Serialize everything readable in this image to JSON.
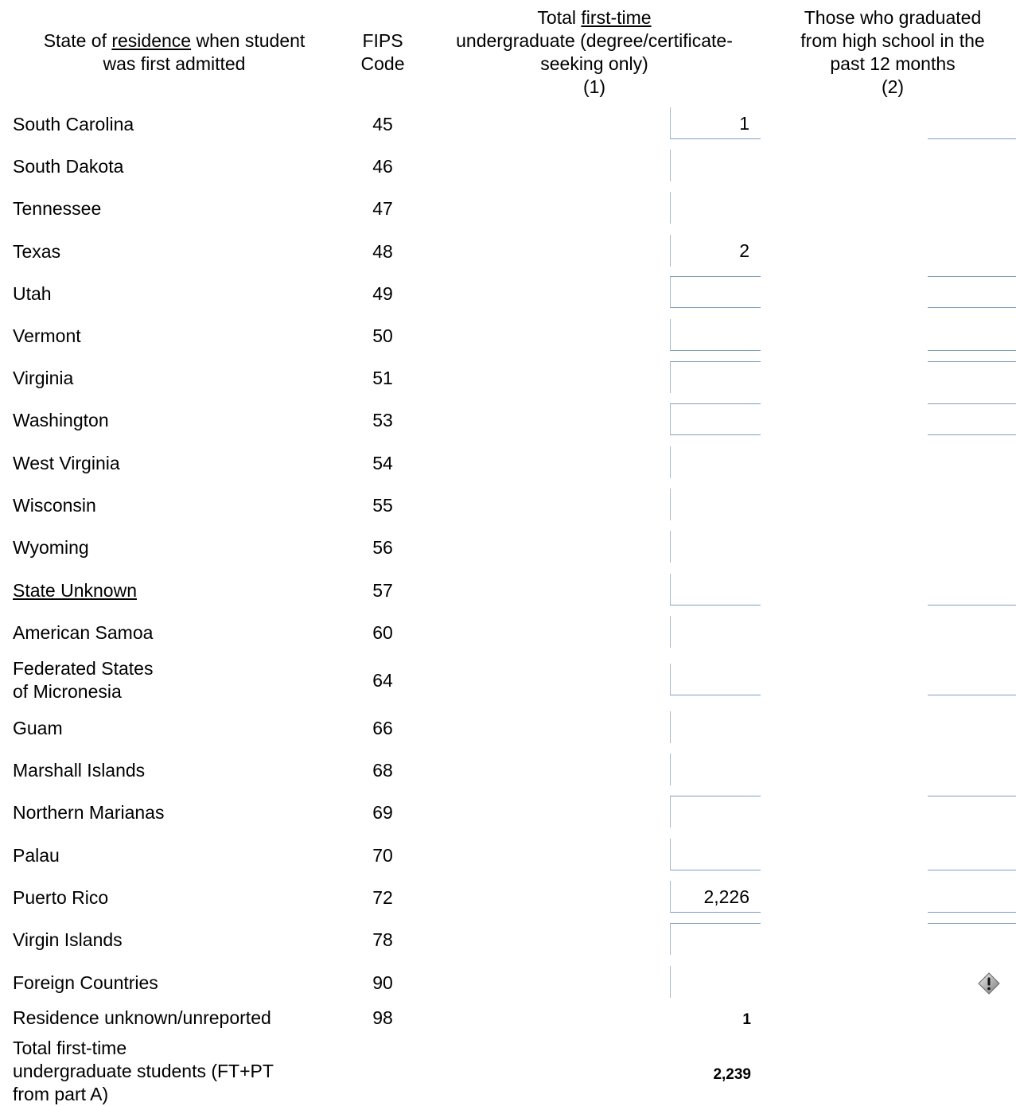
{
  "header": {
    "col_state": {
      "pre": "State of ",
      "link": "residence",
      "post": " when student",
      "line2": "was first admitted"
    },
    "col_fips": {
      "line1": "FIPS",
      "line2": "Code"
    },
    "col1": {
      "pre": "Total ",
      "link": "first-time",
      "line2": "undergraduate (degree/certificate-",
      "line3": "seeking only)",
      "line4": "(1)"
    },
    "col2": {
      "line1": "Those who graduated",
      "line2": "from high school in the",
      "line3": "past 12 months",
      "line4": "(2)"
    }
  },
  "rows": [
    {
      "state": "South Carolina",
      "fips": "45",
      "col1": "1",
      "col2": ""
    },
    {
      "state": "South Dakota",
      "fips": "46",
      "col1": "",
      "col2": ""
    },
    {
      "state": "Tennessee",
      "fips": "47",
      "col1": "",
      "col2": ""
    },
    {
      "state": "Texas",
      "fips": "48",
      "col1": "2",
      "col2": ""
    },
    {
      "state": "Utah",
      "fips": "49",
      "col1": "",
      "col2": ""
    },
    {
      "state": "Vermont",
      "fips": "50",
      "col1": "",
      "col2": ""
    },
    {
      "state": "Virginia",
      "fips": "51",
      "col1": "",
      "col2": ""
    },
    {
      "state": "Washington",
      "fips": "53",
      "col1": "",
      "col2": ""
    },
    {
      "state": "West Virginia",
      "fips": "54",
      "col1": "",
      "col2": ""
    },
    {
      "state": "Wisconsin",
      "fips": "55",
      "col1": "",
      "col2": ""
    },
    {
      "state": "Wyoming",
      "fips": "56",
      "col1": "",
      "col2": ""
    },
    {
      "state": "State Unknown",
      "fips": "57",
      "col1": "",
      "col2": ""
    },
    {
      "state": "American Samoa",
      "fips": "60",
      "col1": "",
      "col2": ""
    },
    {
      "state_line1": "Federated States",
      "state_line2": "of Micronesia",
      "fips": "64",
      "col1": "",
      "col2": ""
    },
    {
      "state": "Guam",
      "fips": "66",
      "col1": "",
      "col2": ""
    },
    {
      "state": "Marshall Islands",
      "fips": "68",
      "col1": "",
      "col2": ""
    },
    {
      "state": "Northern Marianas",
      "fips": "69",
      "col1": "",
      "col2": ""
    },
    {
      "state": "Palau",
      "fips": "70",
      "col1": "",
      "col2": ""
    },
    {
      "state": "Puerto Rico",
      "fips": "72",
      "col1": "2,226",
      "col2": ""
    },
    {
      "state": "Virgin Islands",
      "fips": "78",
      "col1": "",
      "col2": ""
    },
    {
      "state": "Foreign Countries",
      "fips": "90",
      "col1": "",
      "col2": ""
    }
  ],
  "residence_unknown": {
    "label": "Residence unknown/unreported",
    "fips": "98",
    "value": "1"
  },
  "total": {
    "line1": "Total first-time",
    "line2": "undergraduate students (FT+PT",
    "line3": "from part A)",
    "value": "2,239"
  },
  "icons": {
    "warning": "warning-icon"
  }
}
